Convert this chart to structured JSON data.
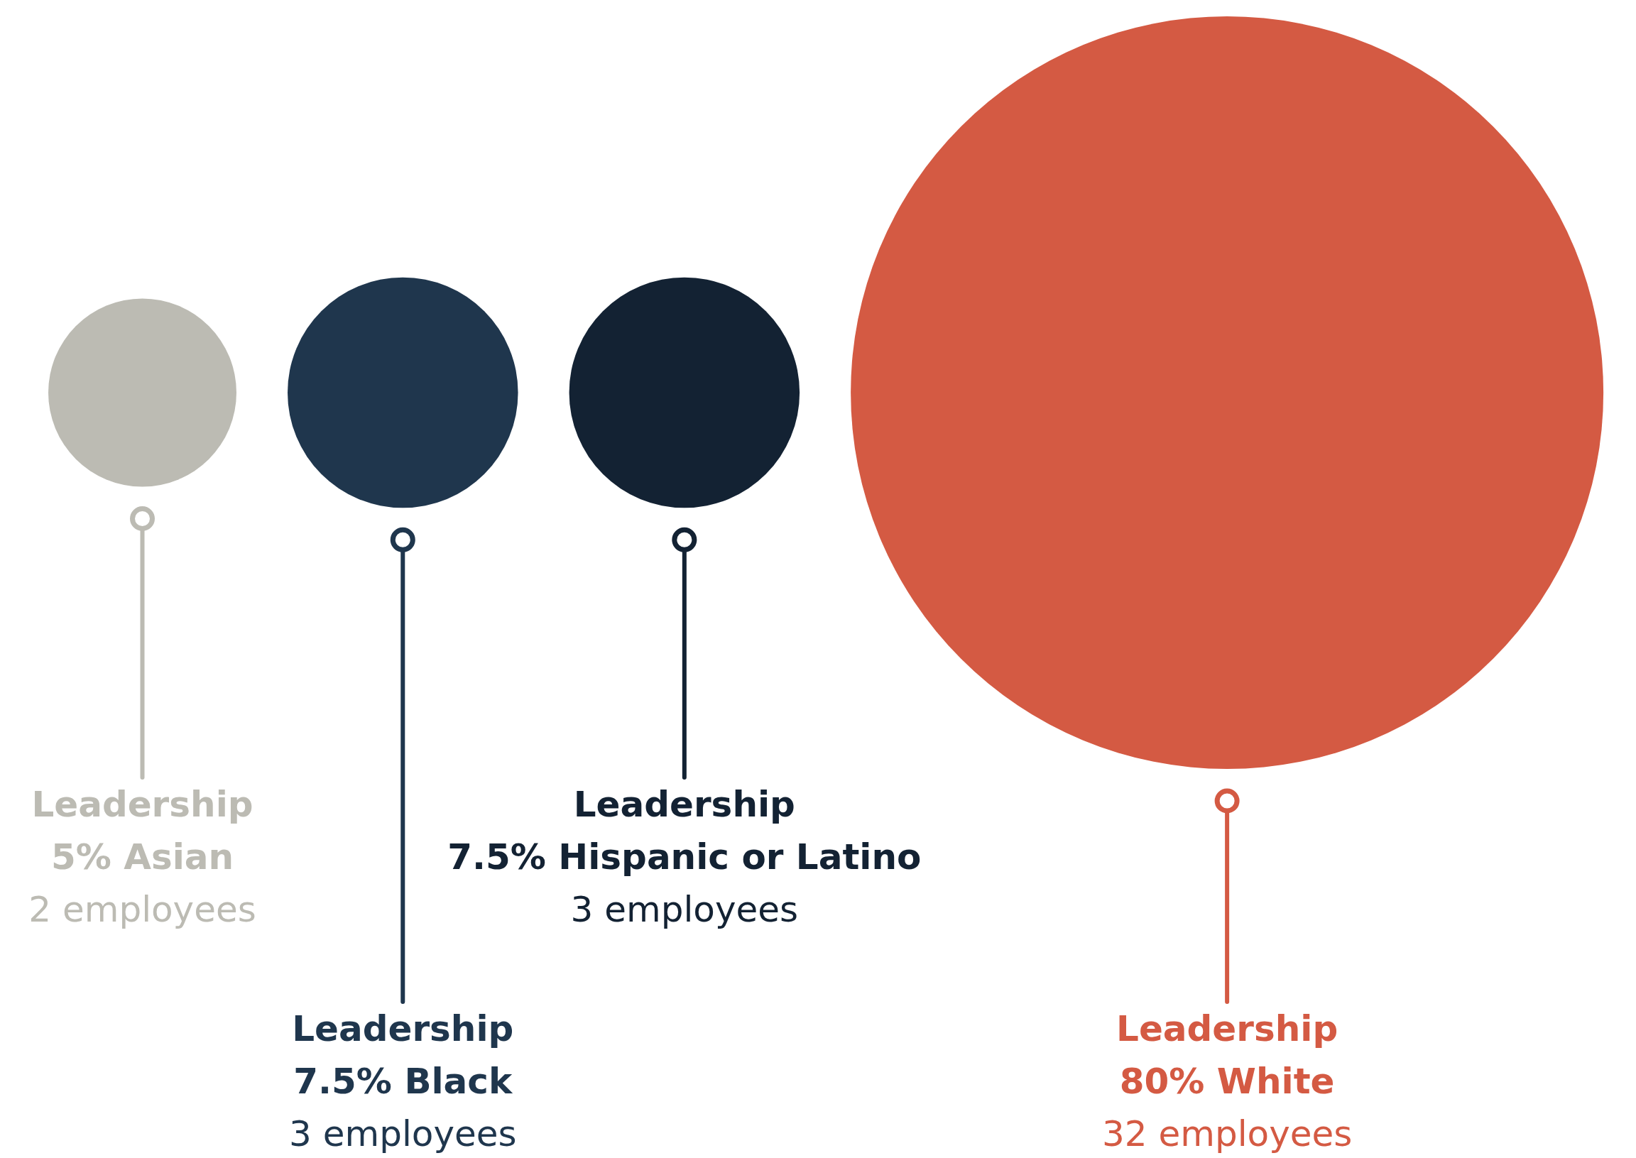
{
  "chart_data": {
    "type": "other",
    "categories": [
      "Asian",
      "Black",
      "Hispanic or Latino",
      "White"
    ],
    "values": [
      5,
      7.5,
      7.5,
      80
    ],
    "value_labels": [
      "5%",
      "7.5%",
      "7.5%",
      "80%"
    ],
    "colors": [
      "#bcbbb3",
      "#1f364d",
      "#132233",
      "#d45a43"
    ],
    "annotations": [
      {
        "text": "Leadership",
        "x": "Asian"
      },
      {
        "text": "2 employees",
        "x": "Asian"
      },
      {
        "text": "Leadership",
        "x": "Black"
      },
      {
        "text": "3 employees",
        "x": "Black"
      },
      {
        "text": "Leadership",
        "x": "Hispanic or Latino"
      },
      {
        "text": "3 employees",
        "x": "Hispanic or Latino"
      },
      {
        "text": "Leadership",
        "x": "White"
      },
      {
        "text": "32 employees",
        "x": "White"
      }
    ]
  }
}
